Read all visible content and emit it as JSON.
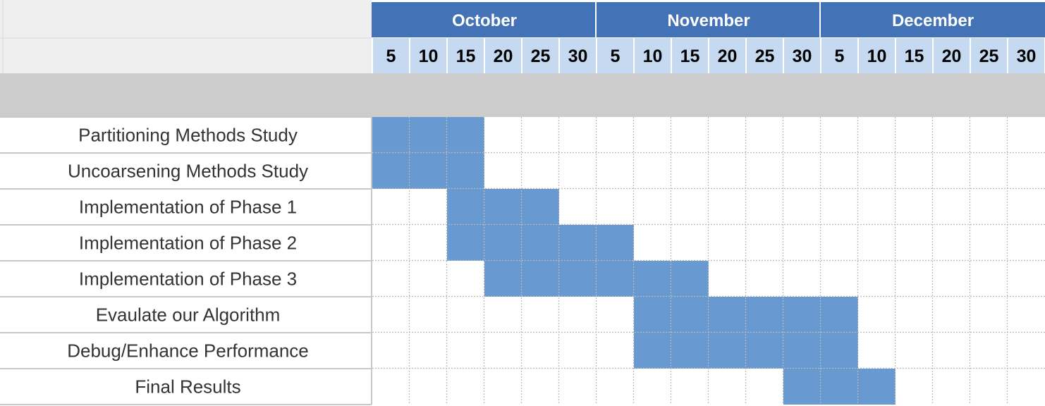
{
  "chart_data": {
    "type": "gantt",
    "months": [
      {
        "name": "October",
        "days": [
          5,
          10,
          15,
          20,
          25,
          30
        ]
      },
      {
        "name": "November",
        "days": [
          5,
          10,
          15,
          20,
          25,
          30
        ]
      },
      {
        "name": "December",
        "days": [
          5,
          10,
          15,
          20,
          25,
          30
        ]
      }
    ],
    "tasks": [
      {
        "name": "Partitioning Methods Study",
        "start": "October 5",
        "end": "October 15"
      },
      {
        "name": "Uncoarsening Methods Study",
        "start": "October 5",
        "end": "October 15"
      },
      {
        "name": "Implementation of Phase 1",
        "start": "October 15",
        "end": "October 25"
      },
      {
        "name": "Implementation of Phase 2",
        "start": "October 15",
        "end": "November 5"
      },
      {
        "name": "Implementation of Phase 3",
        "start": "October 20",
        "end": "November 15"
      },
      {
        "name": "Evaulate our Algorithm",
        "start": "November 10",
        "end": "December 5"
      },
      {
        "name": "Debug/Enhance Performance",
        "start": "November 10",
        "end": "December 5"
      },
      {
        "name": "Final Results",
        "start": "November 30",
        "end": "December 10"
      }
    ],
    "colors": {
      "month_header": "#4472b6",
      "day_header": "#c5d9f1",
      "bar": "#6899d0",
      "band": "#cccccc",
      "corner": "#efefef",
      "task_text": "#333333"
    }
  }
}
